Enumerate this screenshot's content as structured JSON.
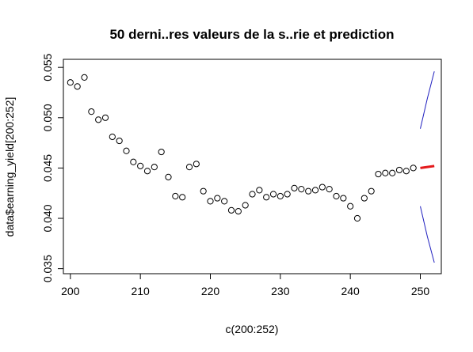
{
  "chart_data": {
    "type": "scatter",
    "title": "50 derni..res valeurs de la s..rie et prediction",
    "xlabel": "c(200:252)",
    "ylabel": "data$earning_yield[200:252]",
    "xlim": [
      199,
      253
    ],
    "ylim": [
      0.0345,
      0.0558
    ],
    "xticks": [
      200,
      210,
      220,
      230,
      240,
      250
    ],
    "xtick_labels": [
      "200",
      "210",
      "220",
      "230",
      "240",
      "250"
    ],
    "yticks": [
      0.035,
      0.04,
      0.045,
      0.05,
      0.055
    ],
    "ytick_labels": [
      "0.035",
      "0.040",
      "0.045",
      "0.050",
      "0.055"
    ],
    "grid": false,
    "series": [
      {
        "kind": "points",
        "color": "#000000",
        "x": [
          200,
          201,
          202,
          203,
          204,
          205,
          206,
          207,
          208,
          209,
          210,
          211,
          212,
          213,
          214,
          215,
          216,
          217,
          218,
          219,
          220,
          221,
          222,
          223,
          224,
          225,
          226,
          227,
          228,
          229,
          230,
          231,
          232,
          233,
          234,
          235,
          236,
          237,
          238,
          239,
          240,
          241,
          242,
          243,
          244,
          245,
          246,
          247,
          248,
          249
        ],
        "y": [
          0.0535,
          0.0531,
          0.054,
          0.0506,
          0.0498,
          0.05,
          0.0481,
          0.0477,
          0.0467,
          0.0456,
          0.0452,
          0.0447,
          0.0451,
          0.0466,
          0.0441,
          0.0422,
          0.0421,
          0.0451,
          0.0454,
          0.0427,
          0.0417,
          0.042,
          0.0417,
          0.0408,
          0.0407,
          0.0413,
          0.0424,
          0.0428,
          0.0421,
          0.0424,
          0.0422,
          0.0424,
          0.043,
          0.0429,
          0.0427,
          0.0428,
          0.0431,
          0.0429,
          0.0422,
          0.042,
          0.0412,
          0.04,
          0.042,
          0.0427,
          0.0444,
          0.0445,
          0.0445,
          0.0448,
          0.0447,
          0.045
        ]
      },
      {
        "kind": "line",
        "color": "#e41a1c",
        "width": 3,
        "x": [
          250,
          251,
          252
        ],
        "y": [
          0.045,
          0.0451,
          0.0452
        ]
      },
      {
        "kind": "line",
        "color": "#1f1fbf",
        "width": 1,
        "x": [
          250,
          251,
          252
        ],
        "y": [
          0.0489,
          0.0519,
          0.0546
        ]
      },
      {
        "kind": "line",
        "color": "#1f1fbf",
        "width": 1,
        "x": [
          250,
          251,
          252
        ],
        "y": [
          0.0412,
          0.0382,
          0.0356
        ]
      }
    ]
  }
}
